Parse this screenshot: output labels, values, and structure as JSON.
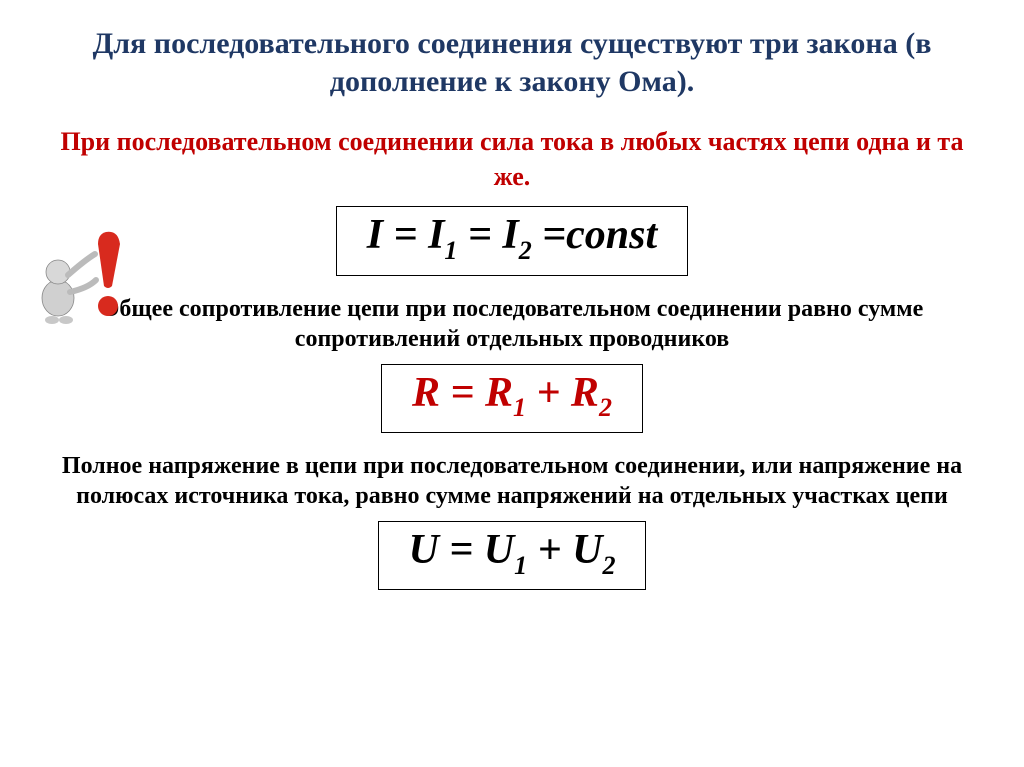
{
  "title": "Для последовательного соединения существуют три закона (в дополнение к закону Ома).",
  "law1": {
    "intro": "При последовательном соединении сила тока в любых частях цепи одна и та же.",
    "formula_html": "I = I<span class=\"sub\">1</span> = I<span class=\"sub\">2</span> =const"
  },
  "law2": {
    "intro": "Общее сопротивление цепи при последовательном соединении равно сумме сопротивлений отдельных проводников",
    "formula_html": "R = R<span class=\"sub\">1</span> + R<span class=\"sub\">2</span>"
  },
  "law3": {
    "intro": "Полное напряжение в цепи при последовательном соединении, или напряжение на полюсах источника тока, равно сумме напряжений на отдельных участках цепи",
    "formula_html": "U = U<span class=\"sub\">1</span> + U<span class=\"sub\">2</span>"
  },
  "colors": {
    "title": "#1f3864",
    "accent_red": "#c00000",
    "text": "#000000",
    "border": "#000000",
    "background": "#ffffff"
  },
  "typography": {
    "title_fontsize": 30,
    "intro_fontsize": 26,
    "lawtext_fontsize": 24,
    "formula_fontsize": 42,
    "font_family": "Times New Roman",
    "weight": "bold"
  }
}
